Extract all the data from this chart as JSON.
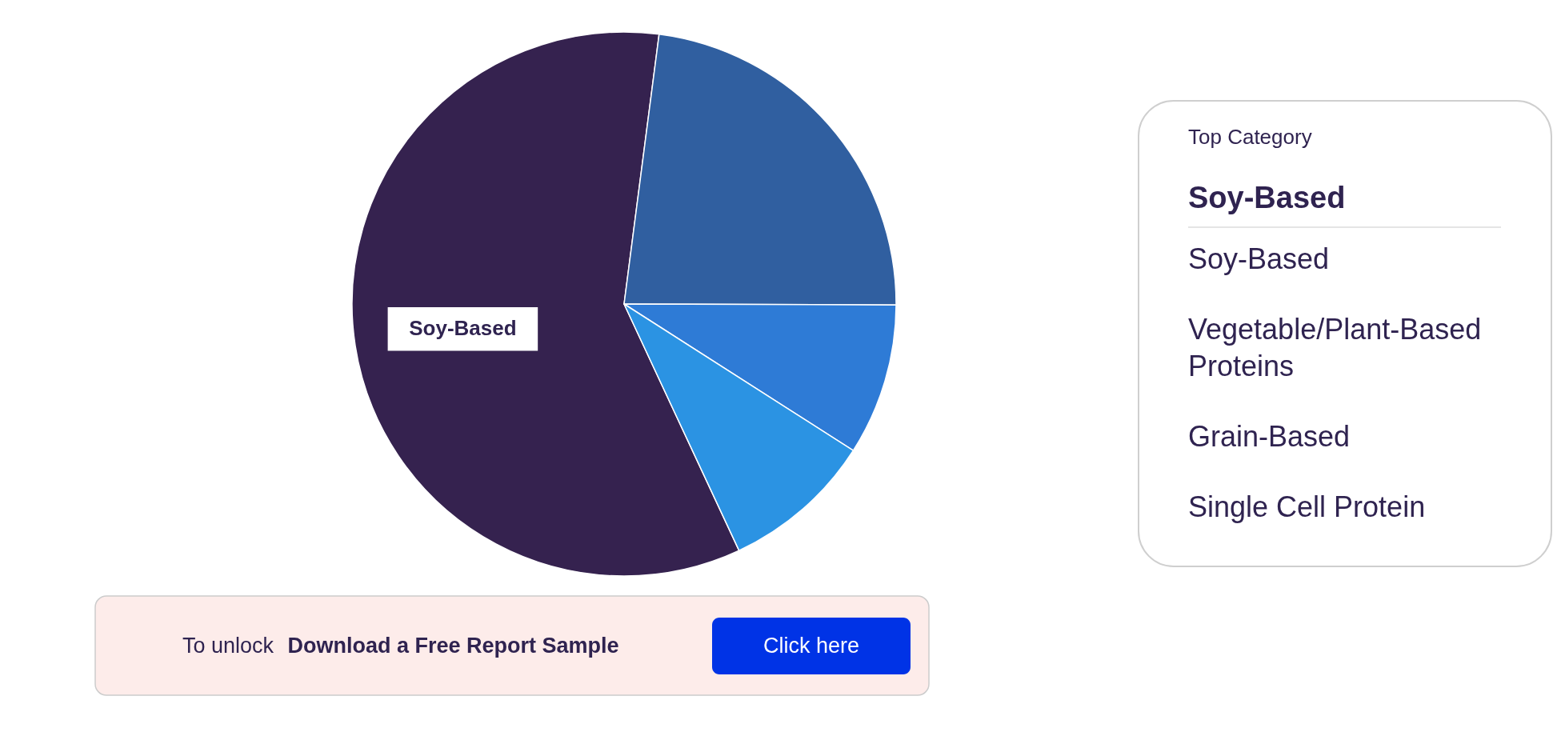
{
  "chart_data": [
    {
      "type": "pie",
      "categories": [
        "Soy-Based",
        null,
        null,
        null
      ],
      "values": [
        59,
        23,
        9,
        9
      ],
      "colors": [
        "#35224f",
        "#305fa0",
        "#2e7bd6",
        "#2b93e3"
      ],
      "annotations": [
        "To unlock",
        "Download a Free Report Sample",
        "Click here"
      ]
    },
    {
      "type": "other",
      "title": "Top Category",
      "annotations": [
        "Soy-Based",
        "Soy-Based",
        "Vegetable/Plant-Based Proteins",
        "Grain-Based",
        "Single Cell Protein"
      ]
    }
  ]
}
